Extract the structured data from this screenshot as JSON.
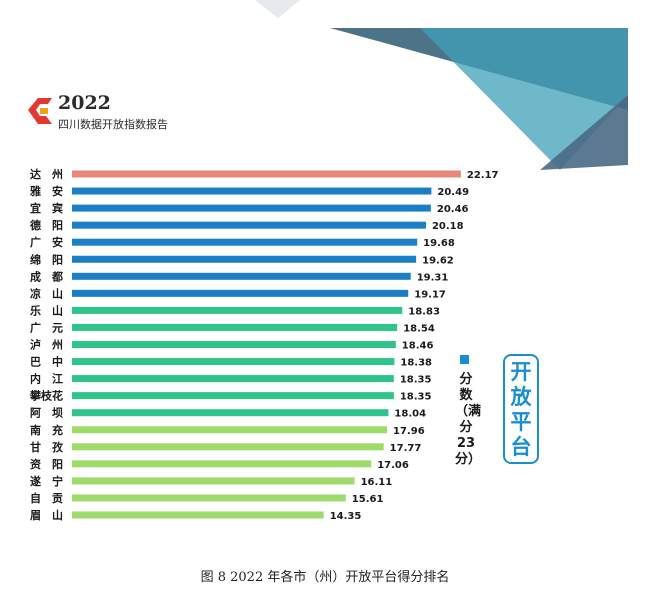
{
  "header": {
    "year": "2022",
    "report_name": "四川数据开放指数报告"
  },
  "legend": {
    "series_name": "分数（满分23分）",
    "series_color": "#1a8fcf"
  },
  "side_title": "开放平台",
  "caption": "图 8 2022 年各市（州）开放平台得分排名",
  "chart_data": {
    "type": "bar",
    "orientation": "horizontal",
    "title": "",
    "xlabel": "",
    "ylabel": "",
    "xlim": [
      0,
      23
    ],
    "grid": false,
    "legend_position": "right",
    "categories": [
      "达　州",
      "雅　安",
      "宜　宾",
      "德　阳",
      "广　安",
      "绵　阳",
      "成　都",
      "凉　山",
      "乐　山",
      "广　元",
      "泸　州",
      "巴　中",
      "内　江",
      "攀枝花",
      "阿　坝",
      "南　充",
      "甘　孜",
      "资　阳",
      "遂　宁",
      "自　贡",
      "眉　山"
    ],
    "values": [
      22.17,
      20.49,
      20.46,
      20.18,
      19.68,
      19.62,
      19.31,
      19.17,
      18.83,
      18.54,
      18.46,
      18.38,
      18.35,
      18.35,
      18.04,
      17.96,
      17.77,
      17.06,
      16.11,
      15.61,
      14.35
    ],
    "value_labels": [
      "22.17",
      "20.49",
      "20.46",
      "20.18",
      "19.68",
      "19.62",
      "19.31",
      "19.17",
      "18.83",
      "18.54",
      "18.46",
      "18.38",
      "18.35",
      "18.35",
      "18.04",
      "17.96",
      "17.77",
      "17.06",
      "16.11",
      "15.61",
      "14.35"
    ],
    "bar_colors": [
      "#e8877a",
      "#1a7fc4",
      "#1a7fc4",
      "#1a7fc4",
      "#1a7fc4",
      "#1a7fc4",
      "#1a7fc4",
      "#1a7fc4",
      "#2ec48a",
      "#2ec48a",
      "#2ec48a",
      "#2ec48a",
      "#2ec48a",
      "#2ec48a",
      "#2ec48a",
      "#9edb6a",
      "#9edb6a",
      "#9edb6a",
      "#9edb6a",
      "#9edb6a",
      "#9edb6a"
    ]
  }
}
